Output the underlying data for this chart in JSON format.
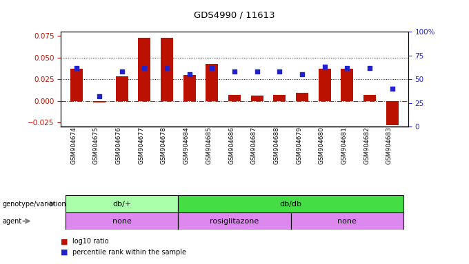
{
  "title": "GDS4990 / 11613",
  "samples": [
    "GSM904674",
    "GSM904675",
    "GSM904676",
    "GSM904677",
    "GSM904678",
    "GSM904684",
    "GSM904685",
    "GSM904686",
    "GSM904687",
    "GSM904688",
    "GSM904679",
    "GSM904680",
    "GSM904681",
    "GSM904682",
    "GSM904683"
  ],
  "log10_ratio": [
    0.037,
    -0.002,
    0.028,
    0.073,
    0.073,
    0.03,
    0.043,
    0.007,
    0.006,
    0.007,
    0.009,
    0.037,
    0.037,
    0.007,
    -0.028
  ],
  "percentile": [
    62,
    32,
    58,
    62,
    62,
    55,
    62,
    58,
    58,
    58,
    55,
    63,
    62,
    62,
    40
  ],
  "ylim_left": [
    -0.03,
    0.08
  ],
  "ylim_right": [
    0,
    100
  ],
  "yticks_left": [
    -0.025,
    0.0,
    0.025,
    0.05,
    0.075
  ],
  "yticks_right": [
    0,
    25,
    50,
    75,
    100
  ],
  "hlines": [
    0.025,
    0.05
  ],
  "bar_color": "#bb1100",
  "dot_color": "#2222cc",
  "background_color": "#ffffff",
  "genotype_groups": [
    {
      "label": "db/+",
      "start": 0,
      "end": 5,
      "color": "#aaffaa"
    },
    {
      "label": "db/db",
      "start": 5,
      "end": 15,
      "color": "#44dd44"
    }
  ],
  "agent_groups": [
    {
      "label": "none",
      "start": 0,
      "end": 5,
      "color": "#dd88ee"
    },
    {
      "label": "rosiglitazone",
      "start": 5,
      "end": 10,
      "color": "#dd88ee"
    },
    {
      "label": "none",
      "start": 10,
      "end": 15,
      "color": "#dd88ee"
    }
  ],
  "legend_items": [
    {
      "label": "log10 ratio",
      "color": "#bb1100"
    },
    {
      "label": "percentile rank within the sample",
      "color": "#2222cc"
    }
  ]
}
